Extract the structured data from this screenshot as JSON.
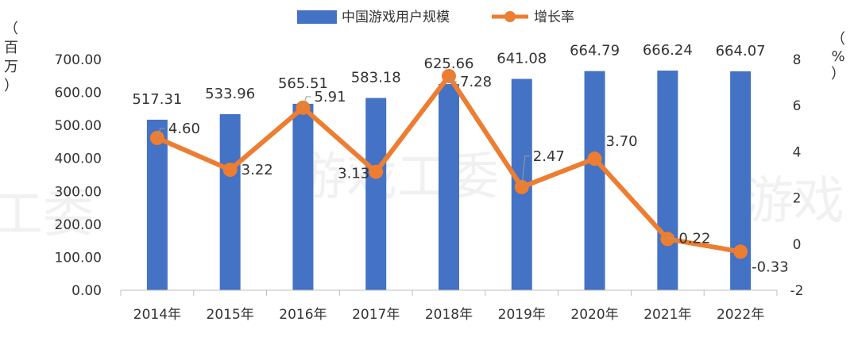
{
  "chart_data": {
    "type": "bar+line",
    "categories": [
      "2014年",
      "2015年",
      "2016年",
      "2017年",
      "2018年",
      "2019年",
      "2020年",
      "2021年",
      "2022年"
    ],
    "series": [
      {
        "name": "中国游戏用户规模",
        "type": "bar",
        "axis": "left",
        "color": "#4472C4",
        "values": [
          517.31,
          533.96,
          565.51,
          583.18,
          625.66,
          641.08,
          664.79,
          666.24,
          664.07
        ],
        "labels": [
          "517.31",
          "533.96",
          "565.51",
          "583.18",
          "625.66",
          "641.08",
          "664.79",
          "666.24",
          "664.07"
        ]
      },
      {
        "name": "增长率",
        "type": "line",
        "axis": "right",
        "color": "#ED7D31",
        "values": [
          4.6,
          3.22,
          5.91,
          3.13,
          7.28,
          2.47,
          3.7,
          0.22,
          -0.33
        ],
        "labels": [
          "4.60",
          "3.22",
          "5.91",
          "3.13",
          "7.28",
          "2.47",
          "3.70",
          "0.22",
          "-0.33"
        ]
      }
    ],
    "left_axis": {
      "unit_chars": [
        "（",
        "百",
        "万",
        "）"
      ],
      "ylim": [
        0,
        700
      ],
      "ticks": [
        "0.00",
        "100.00",
        "200.00",
        "300.00",
        "400.00",
        "500.00",
        "600.00",
        "700.00"
      ]
    },
    "right_axis": {
      "unit_chars": [
        "（",
        "%",
        "）"
      ],
      "ylim": [
        -2,
        8
      ],
      "ticks": [
        "-2",
        "0",
        "2",
        "4",
        "6",
        "8"
      ]
    },
    "legend_position": "top-center",
    "grid": false,
    "watermark": [
      "工委",
      "游戏工委",
      "游戏"
    ]
  }
}
